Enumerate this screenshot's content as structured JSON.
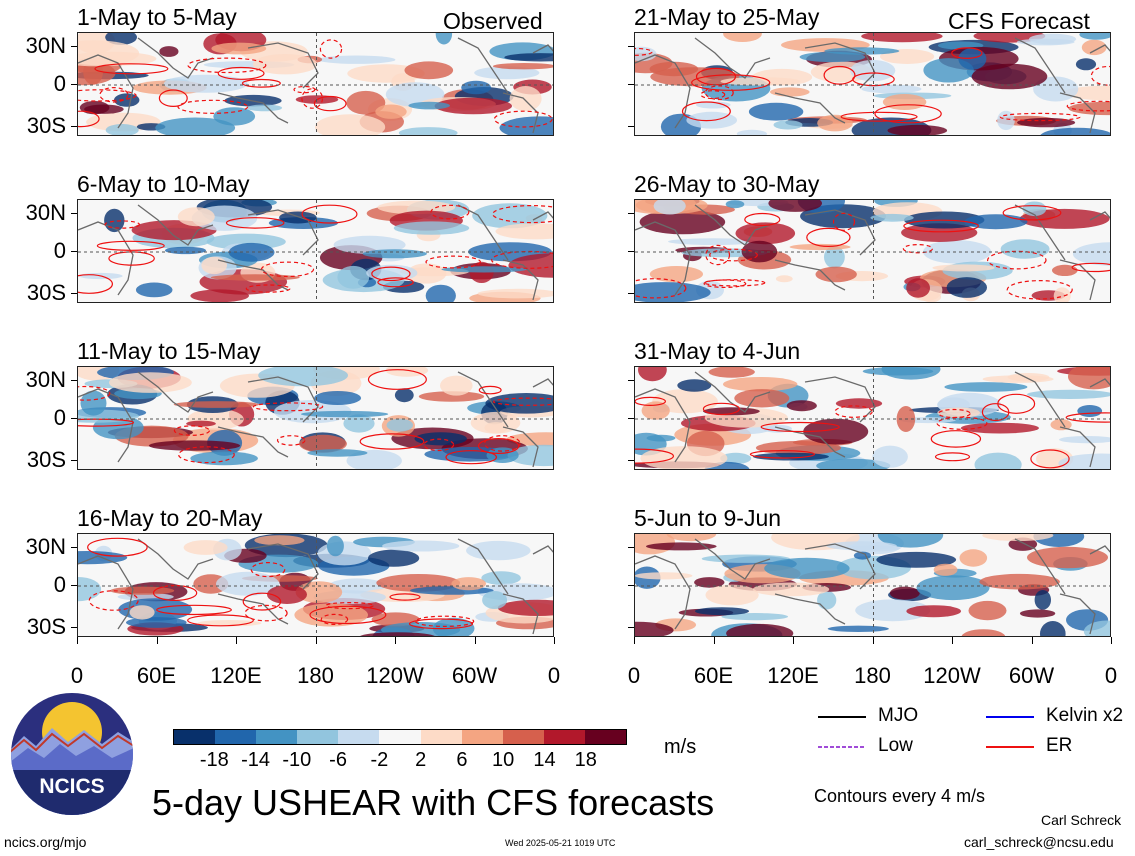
{
  "chart_data": {
    "type": "heatmap",
    "title": "5-day USHEAR with CFS forecasts",
    "units": "m/s",
    "y_tick_labels": [
      "30N",
      "0",
      "30S"
    ],
    "x_tick_labels": [
      "0",
      "60E",
      "120E",
      "180",
      "120W",
      "60W",
      "0"
    ],
    "colorbar": {
      "tick_labels": [
        "-18",
        "-14",
        "-10",
        "-6",
        "-2",
        "2",
        "6",
        "10",
        "14",
        "18"
      ],
      "colors": [
        "#08306b",
        "#2166ac",
        "#4393c3",
        "#92c5de",
        "#c6dbef",
        "#f7f7f7",
        "#fddbc7",
        "#f4a582",
        "#d6604d",
        "#b2182b",
        "#67001f"
      ]
    },
    "left_column_label": "Observed",
    "right_column_label": "CFS Forecast",
    "panels": [
      {
        "title": "1-May to 5-May",
        "column": "left",
        "row": 0,
        "seed": 11
      },
      {
        "title": "6-May to 10-May",
        "column": "left",
        "row": 1,
        "seed": 23
      },
      {
        "title": "11-May to 15-May",
        "column": "left",
        "row": 2,
        "seed": 37
      },
      {
        "title": "16-May to 20-May",
        "column": "left",
        "row": 3,
        "seed": 41
      },
      {
        "title": "21-May to 25-May",
        "column": "right",
        "row": 0,
        "seed": 53
      },
      {
        "title": "26-May to 30-May",
        "column": "right",
        "row": 1,
        "seed": 67
      },
      {
        "title": "31-May to 4-Jun",
        "column": "right",
        "row": 2,
        "seed": 79
      },
      {
        "title": "5-Jun to 9-Jun",
        "column": "right",
        "row": 3,
        "seed": 83
      }
    ],
    "legend": [
      {
        "label": "MJO",
        "color": "#000000",
        "dashed": false
      },
      {
        "label": "Kelvin x2",
        "color": "#0000ee",
        "dashed": false
      },
      {
        "label": "Low",
        "color": "#a04cd8",
        "dashed": true
      },
      {
        "label": "ER",
        "color": "#ee1111",
        "dashed": false
      }
    ],
    "contour_note": "Contours every 4 m/s"
  },
  "footer": {
    "author": "Carl Schreck",
    "email": "carl_schreck@ncsu.edu",
    "url": "ncics.org/mjo",
    "timestamp": "Wed 2025-05-21 1019 UTC"
  },
  "logo": {
    "text": "NCICS",
    "colors": {
      "sky": "#2b2f7e",
      "sun": "#f4c430",
      "mountain1": "#8fa0e0",
      "mountain2": "#5b6bc8",
      "text_bg": "#1f2b6e"
    }
  }
}
